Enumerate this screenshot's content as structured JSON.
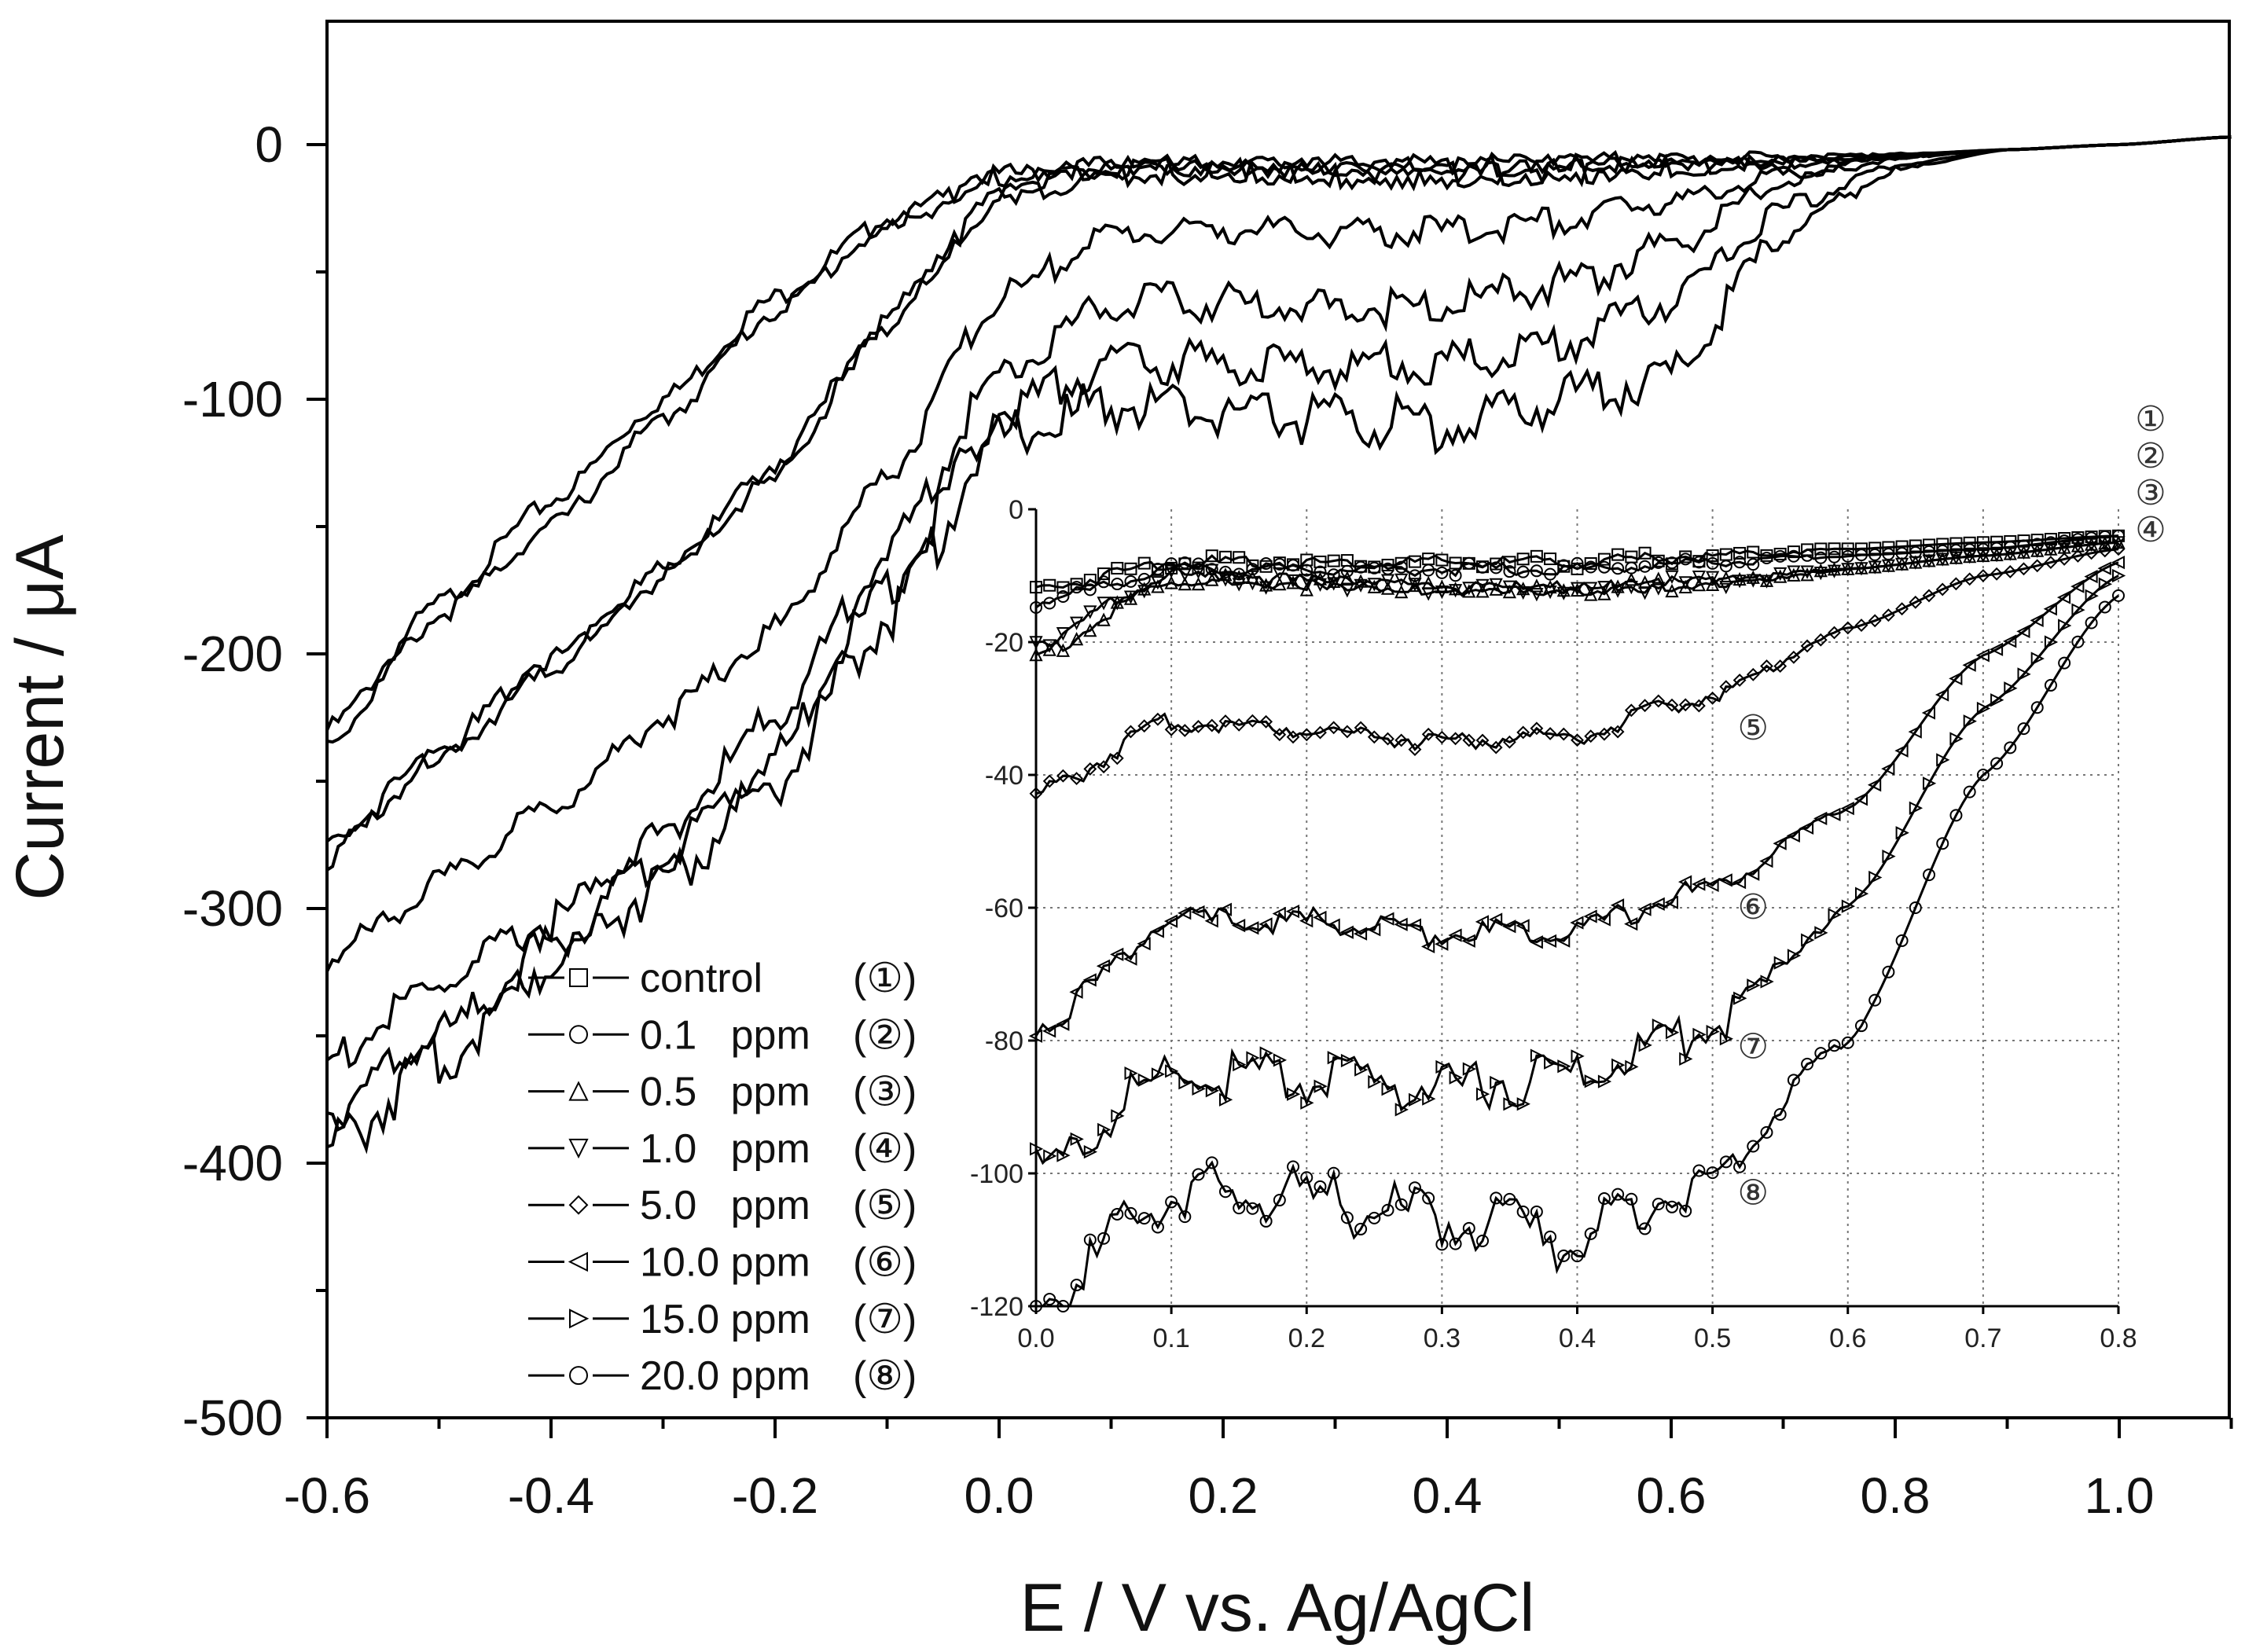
{
  "chart_data": {
    "type": "line",
    "title": "",
    "xlabel": "E / V vs. Ag/AgCl",
    "ylabel": "Current / μA",
    "xlim": [
      -0.6,
      1.1
    ],
    "ylim": [
      -500,
      50
    ],
    "xticks": [
      "-0.6",
      "-0.4",
      "-0.2",
      "0.0",
      "0.2",
      "0.4",
      "0.6",
      "0.8",
      "1.0"
    ],
    "yticks": [
      "0",
      "-100",
      "-200",
      "-300",
      "-400",
      "-500"
    ],
    "grid": false,
    "legend_position": "bottom-left",
    "x": [
      -0.6,
      -0.5,
      -0.4,
      -0.3,
      -0.2,
      -0.1,
      0.0,
      0.1,
      0.2,
      0.3,
      0.4,
      0.5,
      0.6,
      0.7,
      0.8,
      0.9,
      1.0,
      1.1
    ],
    "series": [
      {
        "name": "control",
        "tag": "①",
        "marker": "square",
        "values": [
          -230,
          -180,
          -140,
          -100,
          -60,
          -30,
          -12,
          -8,
          -8,
          -8,
          -8,
          -7,
          -6,
          -5,
          -4,
          -2,
          0,
          3
        ]
      },
      {
        "name": "0.1 ppm",
        "tag": "②",
        "marker": "circle",
        "values": [
          -235,
          -185,
          -150,
          -108,
          -65,
          -32,
          -13,
          -9,
          -9,
          -9,
          -9,
          -8,
          -7,
          -6,
          -4,
          -2,
          0,
          3
        ]
      },
      {
        "name": "0.5 ppm",
        "tag": "③",
        "marker": "triangle-up",
        "values": [
          -280,
          -240,
          -205,
          -170,
          -130,
          -70,
          -20,
          -11,
          -11,
          -12,
          -12,
          -11,
          -9,
          -7,
          -5,
          -2,
          0,
          3
        ]
      },
      {
        "name": "1.0 ppm",
        "tag": "④",
        "marker": "triangle-down",
        "values": [
          -275,
          -238,
          -202,
          -168,
          -127,
          -68,
          -19,
          -10,
          -11,
          -12,
          -12,
          -11,
          -9,
          -7,
          -5,
          -2,
          0,
          3
        ]
      },
      {
        "name": "5.0 ppm",
        "tag": "⑤",
        "marker": "diamond",
        "values": [
          -320,
          -290,
          -260,
          -225,
          -190,
          -130,
          -60,
          -35,
          -33,
          -35,
          -34,
          -30,
          -22,
          -12,
          -5,
          -2,
          0,
          3
        ]
      },
      {
        "name": "10.0 ppm",
        "tag": "⑥",
        "marker": "triangle-left",
        "values": [
          -360,
          -330,
          -305,
          -270,
          -225,
          -160,
          -90,
          -62,
          -62,
          -64,
          -63,
          -55,
          -40,
          -15,
          -5,
          -2,
          0,
          3
        ]
      },
      {
        "name": "15.0 ppm",
        "tag": "⑦",
        "marker": "triangle-right",
        "values": [
          -380,
          -350,
          -315,
          -280,
          -240,
          -175,
          -105,
          -85,
          -86,
          -87,
          -85,
          -78,
          -62,
          -25,
          -8,
          -2,
          0,
          3
        ]
      },
      {
        "name": "20.0 ppm",
        "tag": "⑧",
        "marker": "circle",
        "values": [
          -395,
          -360,
          -320,
          -290,
          -250,
          -185,
          -115,
          -102,
          -105,
          -108,
          -110,
          -100,
          -90,
          -35,
          -10,
          -2,
          0,
          3
        ]
      }
    ],
    "inset": {
      "xlim": [
        0.0,
        0.8
      ],
      "ylim": [
        -120,
        0
      ],
      "xticks": [
        "0.0",
        "0.1",
        "0.2",
        "0.3",
        "0.4",
        "0.5",
        "0.6",
        "0.7",
        "0.8"
      ],
      "yticks": [
        "0",
        "-20",
        "-40",
        "-60",
        "-80",
        "-100",
        "-120"
      ],
      "grid": true,
      "x": [
        0.0,
        0.1,
        0.2,
        0.3,
        0.4,
        0.5,
        0.6,
        0.7,
        0.8
      ],
      "series": [
        {
          "name": "control",
          "values": [
            -12,
            -8,
            -8,
            -8,
            -8,
            -7,
            -6,
            -5,
            -4
          ]
        },
        {
          "name": "0.1 ppm",
          "values": [
            -14,
            -9,
            -9,
            -9,
            -9,
            -8,
            -7,
            -6,
            -4
          ]
        },
        {
          "name": "0.5 ppm",
          "values": [
            -22,
            -11,
            -11,
            -12,
            -12,
            -11,
            -9,
            -7,
            -5
          ]
        },
        {
          "name": "1.0 ppm",
          "values": [
            -20,
            -10,
            -11,
            -12,
            -12,
            -11,
            -9,
            -7,
            -5
          ]
        },
        {
          "name": "5.0 ppm",
          "values": [
            -43,
            -32,
            -33,
            -35,
            -34,
            -28,
            -18,
            -10,
            -6
          ]
        },
        {
          "name": "10.0 ppm",
          "values": [
            -78,
            -62,
            -62,
            -64,
            -63,
            -57,
            -45,
            -22,
            -8
          ]
        },
        {
          "name": "15.0 ppm",
          "values": [
            -100,
            -85,
            -86,
            -87,
            -85,
            -78,
            -60,
            -30,
            -10
          ]
        },
        {
          "name": "20.0 ppm",
          "values": [
            -120,
            -103,
            -104,
            -107,
            -110,
            -100,
            -80,
            -40,
            -13
          ]
        }
      ],
      "annotations": [
        {
          "text": "⑤",
          "x": 0.53,
          "y": -33
        },
        {
          "text": "⑥",
          "x": 0.53,
          "y": -60
        },
        {
          "text": "⑦",
          "x": 0.53,
          "y": -81
        },
        {
          "text": "⑧",
          "x": 0.53,
          "y": -103
        }
      ],
      "side_labels": [
        "①",
        "②",
        "③",
        "④"
      ]
    }
  }
}
